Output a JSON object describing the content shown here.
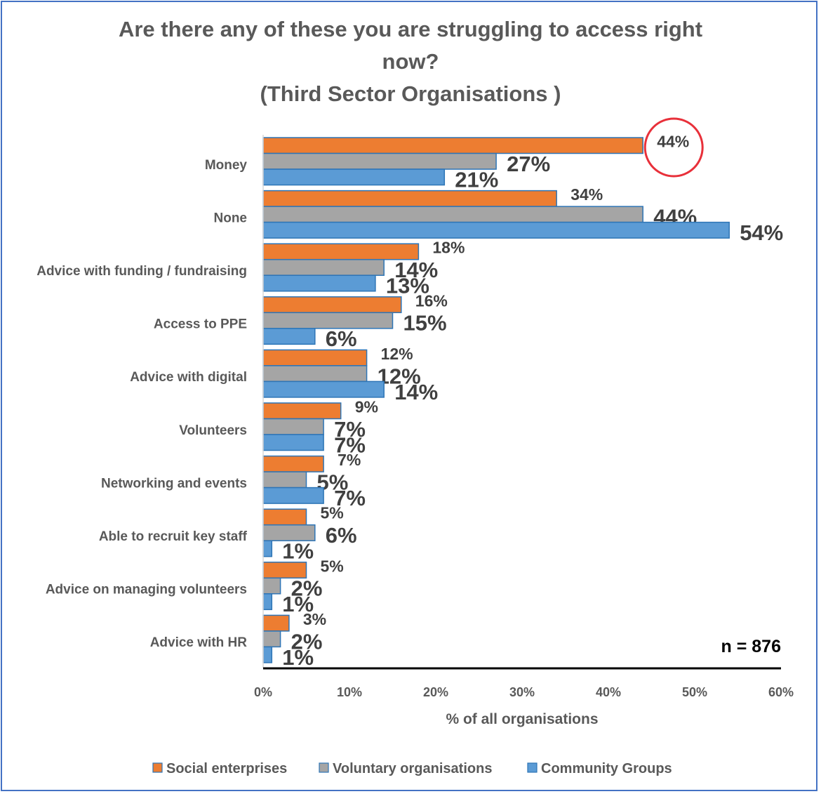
{
  "chart_data": {
    "type": "bar",
    "orientation": "horizontal",
    "title": "Are there any of these you are struggling to access right now?",
    "title_lines": [
      "Are there any of these you are struggling to access right",
      "now?",
      "(Third Sector Organisations )"
    ],
    "subtitle": "(Third Sector Organisations )",
    "xlabel": "% of all organisations",
    "ylabel": "",
    "xlim": [
      0,
      60
    ],
    "xticks": [
      "0%",
      "10%",
      "20%",
      "30%",
      "40%",
      "50%",
      "60%"
    ],
    "categories": [
      "Money",
      "None",
      "Advice with funding / fundraising",
      "Access to PPE",
      "Advice with digital",
      "Volunteers",
      "Networking and events",
      "Able to recruit key staff",
      "Advice on managing volunteers",
      "Advice with HR"
    ],
    "series": [
      {
        "name": "Social enterprises",
        "color": "#ed7d31",
        "values": [
          44,
          34,
          18,
          16,
          12,
          9,
          7,
          5,
          5,
          3
        ],
        "labels": [
          "44%",
          "34%",
          "18%",
          "16%",
          "12%",
          "9%",
          "7%",
          "5%",
          "5%",
          "3%"
        ]
      },
      {
        "name": "Voluntary organisations",
        "color": "#a5a5a5",
        "values": [
          27,
          44,
          14,
          15,
          12,
          7,
          5,
          6,
          2,
          2
        ],
        "labels": [
          "27%",
          "44%",
          "14%",
          "15%",
          "12%",
          "7%",
          "5%",
          "6%",
          "2%",
          "2%"
        ]
      },
      {
        "name": "Community Groups",
        "color": "#5b9bd5",
        "values": [
          21,
          54,
          13,
          6,
          14,
          7,
          7,
          1,
          1,
          1
        ],
        "labels": [
          "21%",
          "54%",
          "13%",
          "6%",
          "14%",
          "7%",
          "7%",
          "1%",
          "1%",
          "1%"
        ]
      }
    ],
    "annotation": "n = 876",
    "highlight": {
      "category": "Money",
      "series": "Social enterprises",
      "style": "red circle"
    },
    "grid": false,
    "legend_position": "bottom"
  }
}
